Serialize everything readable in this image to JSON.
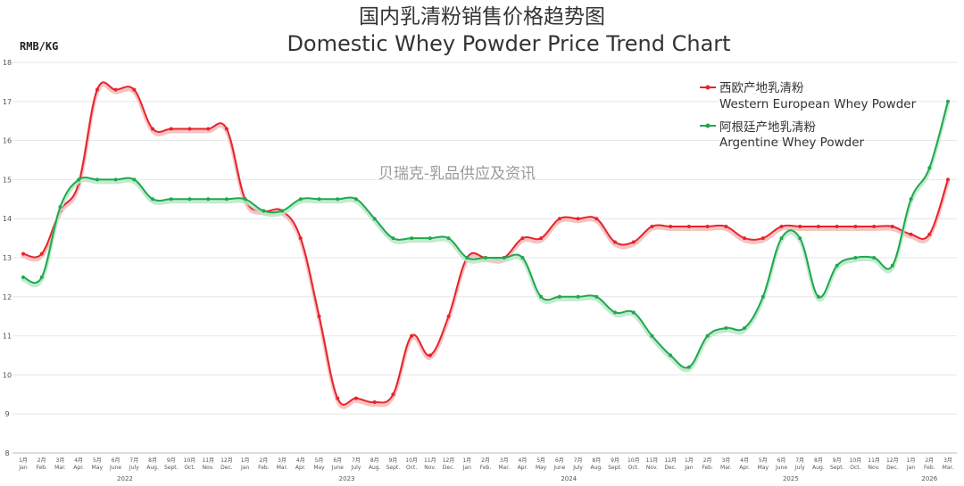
{
  "chart_data": {
    "type": "line",
    "title": "国内乳清粉销售价格趋势图",
    "subtitle": "Domestic Whey Powder Price Trend Chart",
    "ylabel": "RMB/KG",
    "ylim": [
      8,
      18
    ],
    "yticks": [
      "8",
      "9",
      "10",
      "11",
      "12",
      "13",
      "14",
      "15",
      "16",
      "17",
      "18"
    ],
    "grid": true,
    "legend": "top-right",
    "watermark": "贝瑞克-乳品供应及资讯",
    "months_cn": [
      "1月",
      "2月",
      "3月",
      "4月",
      "5月",
      "6月",
      "7月",
      "8月",
      "9月",
      "10月",
      "11月",
      "12月",
      "1月",
      "2月",
      "3月",
      "4月",
      "5月",
      "6月",
      "7月",
      "8月",
      "9月",
      "10月",
      "11月",
      "12月",
      "1月",
      "2月",
      "3月",
      "4月",
      "5月",
      "6月",
      "7月",
      "8月",
      "9月",
      "10月",
      "11月",
      "12月",
      "1月",
      "2月",
      "3月",
      "4月",
      "5月",
      "6月",
      "7月",
      "8月",
      "9月",
      "10月",
      "11月",
      "12月",
      "1月",
      "2月",
      "3月"
    ],
    "months_en": [
      "Jan",
      "Feb.",
      "Mar.",
      "Apr.",
      "May",
      "June",
      "July",
      "Aug.",
      "Sept.",
      "Oct.",
      "Nov.",
      "Dec.",
      "Jan",
      "Feb.",
      "Mar.",
      "Apr.",
      "May",
      "June",
      "July",
      "Aug.",
      "Sept.",
      "Oct.",
      "Nov.",
      "Dec.",
      "Jan",
      "Feb.",
      "Mar.",
      "Apr.",
      "May",
      "June",
      "July",
      "Aug.",
      "Sept.",
      "Oct.",
      "Nov.",
      "Dec.",
      "Jan",
      "Feb.",
      "Mar.",
      "Apr.",
      "May",
      "June",
      "July",
      "Aug.",
      "Sept.",
      "Oct.",
      "Nov.",
      "Dec.",
      "Jan",
      "Feb.",
      "Mar."
    ],
    "years": [
      {
        "label": "2022",
        "center_index": 5.5
      },
      {
        "label": "2023",
        "center_index": 17.5
      },
      {
        "label": "2024",
        "center_index": 29.5
      },
      {
        "label": "2025",
        "center_index": 41.5
      },
      {
        "label": "2026",
        "center_index": 49
      }
    ],
    "series": [
      {
        "name_cn": "西欧产地乳清粉",
        "name_en": "Western European Whey Powder",
        "color": "#e8232a",
        "shadow": "#f4b8b8",
        "values": [
          13.1,
          13.1,
          14.2,
          14.9,
          17.3,
          17.3,
          17.3,
          16.3,
          16.3,
          16.3,
          16.3,
          16.3,
          14.5,
          14.2,
          14.2,
          13.5,
          11.5,
          9.4,
          9.4,
          9.3,
          9.5,
          11.0,
          10.5,
          11.5,
          13.0,
          13.0,
          13.0,
          13.5,
          13.5,
          14.0,
          14.0,
          14.0,
          13.4,
          13.4,
          13.8,
          13.8,
          13.8,
          13.8,
          13.8,
          13.5,
          13.5,
          13.8,
          13.8,
          13.8,
          13.8,
          13.8,
          13.8,
          13.8,
          13.6,
          13.6,
          15.0
        ]
      },
      {
        "name_cn": "阿根廷产地乳清粉",
        "name_en": "Argentine Whey Powder",
        "color": "#1fa84f",
        "shadow": "#b8e6c6",
        "values": [
          12.5,
          12.5,
          14.3,
          15.0,
          15.0,
          15.0,
          15.0,
          14.5,
          14.5,
          14.5,
          14.5,
          14.5,
          14.5,
          14.2,
          14.2,
          14.5,
          14.5,
          14.5,
          14.5,
          14.0,
          13.5,
          13.5,
          13.5,
          13.5,
          13.0,
          13.0,
          13.0,
          13.0,
          12.0,
          12.0,
          12.0,
          12.0,
          11.6,
          11.6,
          11.0,
          10.5,
          10.2,
          11.0,
          11.2,
          11.2,
          12.0,
          13.5,
          13.5,
          12.0,
          12.8,
          13.0,
          13.0,
          12.8,
          14.5,
          15.3,
          17.0
        ]
      }
    ]
  }
}
